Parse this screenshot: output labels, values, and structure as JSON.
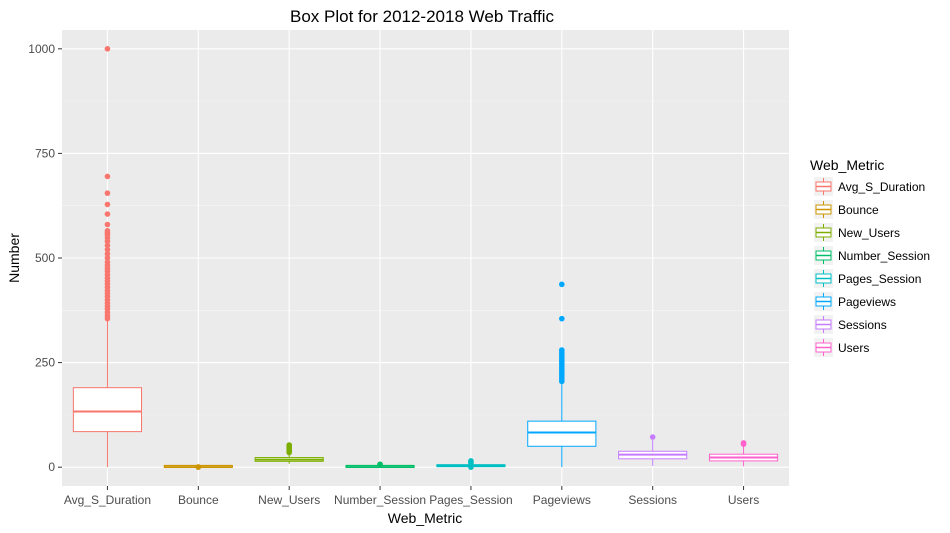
{
  "chart_data": {
    "type": "boxplot",
    "title": "Box Plot for 2012-2018 Web Traffic",
    "xlabel": "Web_Metric",
    "ylabel": "Number",
    "ylim": [
      -45,
      1045
    ],
    "yticks": [
      0,
      250,
      500,
      750,
      1000
    ],
    "ytick_labels": [
      "0",
      "250",
      "500",
      "750",
      "1000"
    ],
    "grid": true,
    "legend": {
      "title": "Web_Metric",
      "position": "right"
    },
    "categories": [
      "Avg_S_Duration",
      "Bounce",
      "New_Users",
      "Number_Session",
      "Pages_Session",
      "Pageviews",
      "Sessions",
      "Users"
    ],
    "series": [
      {
        "name": "Avg_S_Duration",
        "color": "#F8766D",
        "min": 0,
        "q1": 85,
        "median": 133,
        "q3": 190,
        "max": 350,
        "outliers": [
          355,
          362,
          370,
          378,
          385,
          392,
          400,
          408,
          415,
          422,
          430,
          438,
          445,
          452,
          460,
          468,
          475,
          482,
          490,
          500,
          510,
          520,
          530,
          540,
          548,
          555,
          560,
          565,
          580,
          605,
          628,
          655,
          695,
          1000
        ]
      },
      {
        "name": "Bounce",
        "color": "#CD9600",
        "min": 0.5,
        "q1": 2,
        "median": 3,
        "q3": 4,
        "max": 5,
        "outliers": [
          0,
          0.5
        ]
      },
      {
        "name": "New_Users",
        "color": "#7CAE00",
        "min": 8,
        "q1": 14,
        "median": 18,
        "q3": 23,
        "max": 33,
        "outliers": [
          35,
          38,
          41,
          44,
          47,
          50,
          53
        ]
      },
      {
        "name": "Number_Session",
        "color": "#00BE67",
        "min": 0,
        "q1": 2,
        "median": 3,
        "q3": 4,
        "max": 5,
        "outliers": [
          6,
          7
        ]
      },
      {
        "name": "Pages_Session",
        "color": "#00BFC4",
        "min": 0,
        "q1": 2,
        "median": 4,
        "q3": 6,
        "max": 9,
        "outliers": [
          0,
          10,
          12,
          15
        ]
      },
      {
        "name": "Pageviews",
        "color": "#00A9FF",
        "min": 0,
        "q1": 50,
        "median": 83,
        "q3": 110,
        "max": 200,
        "outliers": [
          205,
          210,
          215,
          220,
          225,
          230,
          235,
          240,
          245,
          250,
          255,
          260,
          265,
          270,
          275,
          280,
          355,
          437
        ]
      },
      {
        "name": "Sessions",
        "color": "#C77CFF",
        "min": 3,
        "q1": 20,
        "median": 30,
        "q3": 38,
        "max": 65,
        "outliers": [
          72
        ]
      },
      {
        "name": "Users",
        "color": "#FF61CC",
        "min": 2,
        "q1": 15,
        "median": 23,
        "q3": 31,
        "max": 52,
        "outliers": [
          55,
          58
        ]
      }
    ]
  }
}
